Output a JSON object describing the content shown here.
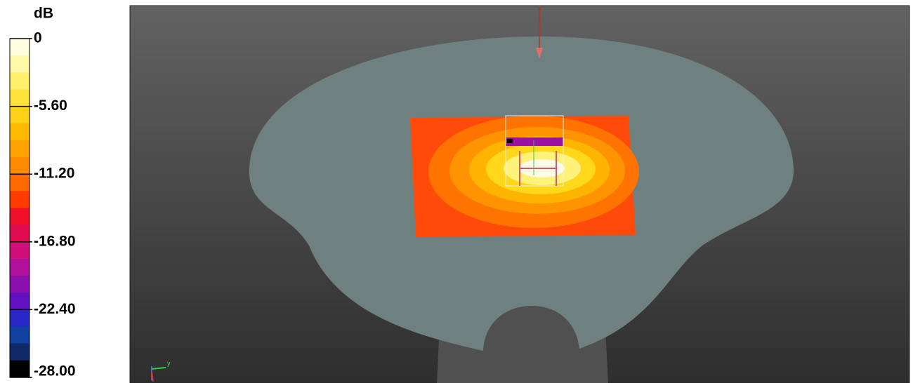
{
  "colorbar": {
    "title": "dB",
    "lim": [
      0,
      -28
    ],
    "ticks": [
      0,
      {
        "value": -5.6,
        "label": "-5.60"
      },
      {
        "value": -11.2,
        "label": "-11.20"
      },
      {
        "value": -16.8,
        "label": "-16.80"
      },
      {
        "value": -22.4,
        "label": "-22.40"
      },
      {
        "value": -28,
        "label": "-28.00"
      }
    ],
    "colors": [
      "#fffde0",
      "#fff7a8",
      "#ffef6a",
      "#ffe23a",
      "#ffd21a",
      "#ffba00",
      "#ffa200",
      "#ff8a00",
      "#ff6a00",
      "#ff3c00",
      "#f0102a",
      "#e00a50",
      "#d0107a",
      "#b0109a",
      "#8c10b0",
      "#6010c0",
      "#2828c8",
      "#1040a0",
      "#102868",
      "#000000"
    ]
  },
  "triad": {
    "y_label": "y"
  }
}
